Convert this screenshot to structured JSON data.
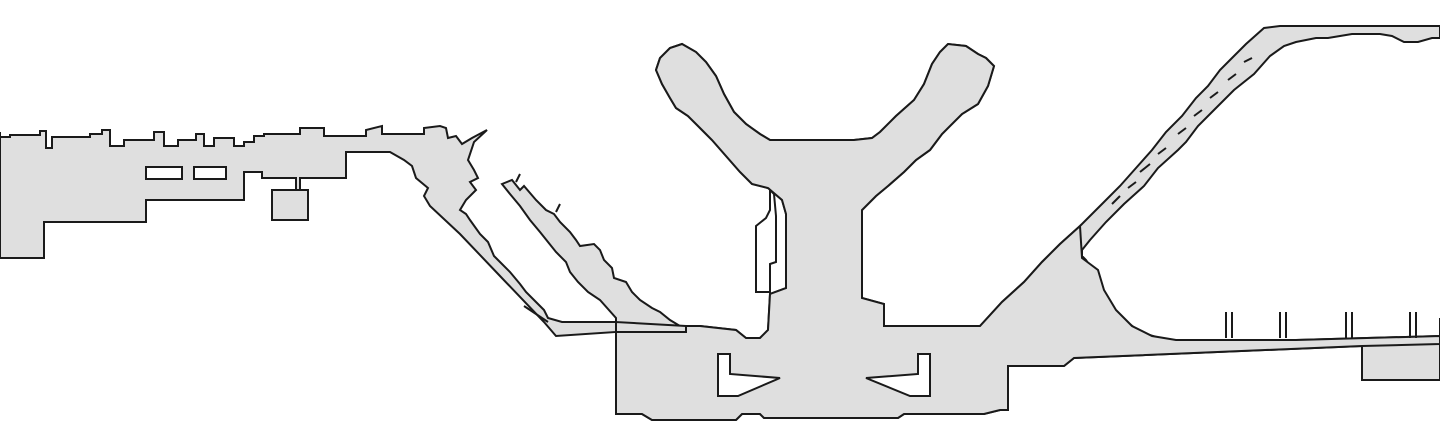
{
  "colors": {
    "background": "#ffffff",
    "floor_fill": "#dfdfdf",
    "outline": "#1a1a1a"
  }
}
